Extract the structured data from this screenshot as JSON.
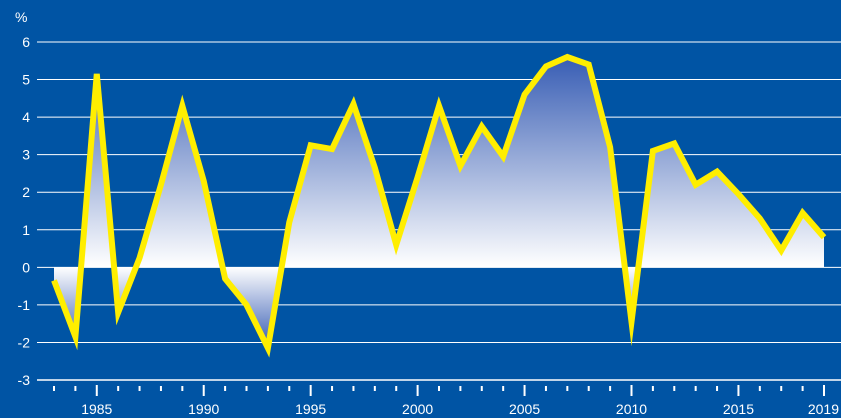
{
  "chart_data": {
    "type": "area",
    "title": "",
    "ylabel": "%",
    "xlabel": "",
    "ylim": [
      -3,
      6
    ],
    "yticks": [
      "6",
      "5",
      "4",
      "3",
      "2",
      "1",
      "0",
      "-1",
      "-2",
      "-3"
    ],
    "xtick_labels": [
      "1985",
      "1990",
      "1995",
      "2000",
      "2005",
      "2010",
      "2015",
      "2019"
    ],
    "xlim": [
      1983,
      2019
    ],
    "grid": true,
    "colors": {
      "background": "#0054a4",
      "line": "#ffee00",
      "grid": "#ffffff",
      "fill_top": "#3a5fb5",
      "fill_bottom": "#ffffff"
    },
    "series": [
      {
        "x": [
          1983,
          1984,
          1985,
          1986,
          1987,
          1988,
          1989,
          1990,
          1991,
          1992,
          1993,
          1994,
          1995,
          1996,
          1997,
          1998,
          1999,
          2000,
          2001,
          2002,
          2003,
          2004,
          2005,
          2006,
          2007,
          2008,
          2009,
          2010,
          2011,
          2012,
          2013,
          2014,
          2015,
          2016,
          2017,
          2018,
          2019
        ],
        "values": [
          -0.35,
          -1.85,
          5.15,
          -1.2,
          0.25,
          2.2,
          4.3,
          2.3,
          -0.3,
          -1.0,
          -2.15,
          1.2,
          3.25,
          3.15,
          4.35,
          2.65,
          0.6,
          2.4,
          4.3,
          2.7,
          3.75,
          2.95,
          4.6,
          5.35,
          5.6,
          5.4,
          3.2,
          -1.45,
          3.1,
          3.3,
          2.2,
          2.55,
          1.95,
          1.3,
          0.45,
          1.45,
          0.8
        ]
      }
    ]
  }
}
